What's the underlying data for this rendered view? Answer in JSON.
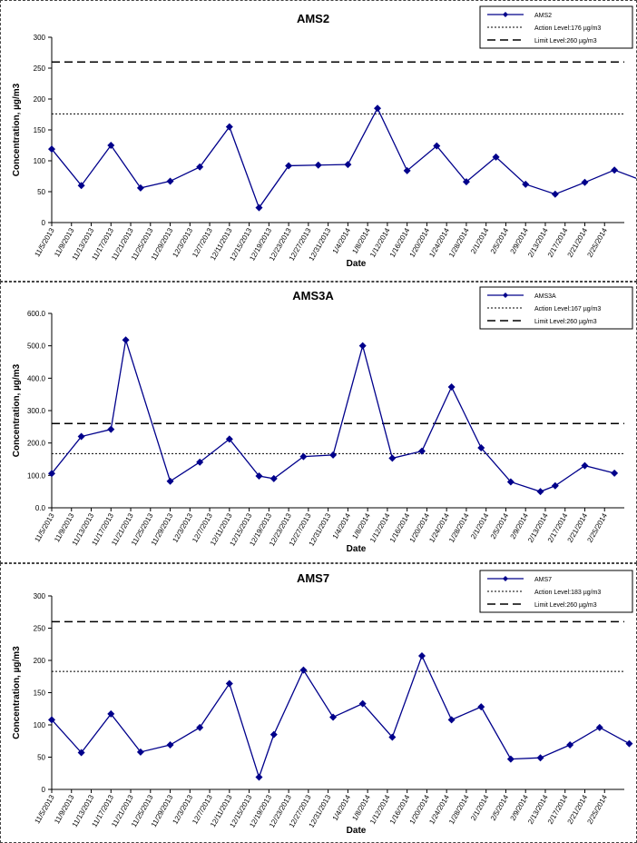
{
  "chart_data": [
    {
      "type": "line",
      "title": "AMS2",
      "xlabel": "Date",
      "ylabel": "Concentration, µg/m3",
      "ylim": [
        0,
        300
      ],
      "yticks": [
        "0",
        "50",
        "100",
        "150",
        "200",
        "250",
        "300"
      ],
      "categories": [
        "11/5/2013",
        "11/9/2013",
        "11/13/2013",
        "11/17/2013",
        "11/21/2013",
        "11/25/2013",
        "11/29/2013",
        "12/3/2013",
        "12/7/2013",
        "12/11/2013",
        "12/15/2013",
        "12/19/2013",
        "12/23/2013",
        "12/27/2013",
        "12/31/2013",
        "1/4/2014",
        "1/8/2014",
        "1/12/2014",
        "1/16/2014",
        "1/20/2014",
        "1/24/2014",
        "1/28/2014",
        "2/1/2014",
        "2/5/2014",
        "2/9/2014",
        "2/13/2014",
        "2/17/2014",
        "2/21/2014",
        "2/25/2014"
      ],
      "series": [
        {
          "name": "AMS2",
          "type": "line",
          "color": "#00008B",
          "points": [
            [
              "11/5/2013",
              119
            ],
            [
              "11/11/2013",
              60
            ],
            [
              "11/17/2013",
              125
            ],
            [
              "11/23/2013",
              56
            ],
            [
              "11/29/2013",
              67
            ],
            [
              "12/5/2013",
              90
            ],
            [
              "12/11/2013",
              155
            ],
            [
              "12/17/2013",
              24
            ],
            [
              "12/23/2013",
              92
            ],
            [
              "12/29/2013",
              93
            ],
            [
              "1/4/2014",
              94
            ],
            [
              "1/10/2014",
              185
            ],
            [
              "1/16/2014",
              84
            ],
            [
              "1/22/2014",
              124
            ],
            [
              "1/28/2014",
              66
            ],
            [
              "2/3/2014",
              106
            ],
            [
              "2/9/2014",
              62
            ],
            [
              "2/15/2014",
              46
            ],
            [
              "2/21/2014",
              65
            ],
            [
              "2/27/2014",
              85
            ],
            [
              "3/5/2014",
              67
            ]
          ]
        },
        {
          "name": "Action Level:176 µg/m3",
          "type": "hline",
          "value": 176,
          "style": "dotted"
        },
        {
          "name": "Limit Level:260 µg/m3",
          "type": "hline",
          "value": 260,
          "style": "dashed"
        }
      ],
      "legend": "top-right",
      "grid": false
    },
    {
      "type": "line",
      "title": "AMS3A",
      "xlabel": "Date",
      "ylabel": "Concentration, µg/m3",
      "ylim": [
        0,
        600
      ],
      "yticks": [
        "0.0",
        "100.0",
        "200.0",
        "300.0",
        "400.0",
        "500.0",
        "600.0"
      ],
      "categories": [
        "11/5/2013",
        "11/9/2013",
        "11/13/2013",
        "11/17/2013",
        "11/21/2013",
        "11/25/2013",
        "11/29/2013",
        "12/3/2013",
        "12/7/2013",
        "12/11/2013",
        "12/15/2013",
        "12/19/2013",
        "12/23/2013",
        "12/27/2013",
        "12/31/2013",
        "1/4/2014",
        "1/8/2014",
        "1/12/2014",
        "1/16/2014",
        "1/20/2014",
        "1/24/2014",
        "1/28/2014",
        "2/1/2014",
        "2/5/2014",
        "2/9/2014",
        "2/13/2014",
        "2/17/2014",
        "2/21/2014",
        "2/25/2014"
      ],
      "series": [
        {
          "name": "AMS3A",
          "type": "line",
          "color": "#00008B",
          "points": [
            [
              "11/5/2013",
              106
            ],
            [
              "11/11/2013",
              220
            ],
            [
              "11/17/2013",
              242
            ],
            [
              "11/20/2013",
              518
            ],
            [
              "11/29/2013",
              82
            ],
            [
              "12/5/2013",
              141
            ],
            [
              "12/11/2013",
              212
            ],
            [
              "12/17/2013",
              98
            ],
            [
              "12/20/2013",
              90
            ],
            [
              "12/26/2013",
              158
            ],
            [
              "1/1/2014",
              163
            ],
            [
              "1/7/2014",
              500
            ],
            [
              "1/13/2014",
              153
            ],
            [
              "1/19/2014",
              175
            ],
            [
              "1/25/2014",
              373
            ],
            [
              "1/31/2014",
              185
            ],
            [
              "2/6/2014",
              80
            ],
            [
              "2/12/2014",
              50
            ],
            [
              "2/15/2014",
              68
            ],
            [
              "2/21/2014",
              130
            ],
            [
              "2/27/2014",
              107
            ]
          ]
        },
        {
          "name": "Action Level:167 µg/m3",
          "type": "hline",
          "value": 167,
          "style": "dotted"
        },
        {
          "name": "Limit Level:260 µg/m3",
          "type": "hline",
          "value": 260,
          "style": "dashed"
        }
      ],
      "legend": "top-right",
      "grid": false
    },
    {
      "type": "line",
      "title": "AMS7",
      "xlabel": "Date",
      "ylabel": "Concentration, µg/m3",
      "ylim": [
        0,
        300
      ],
      "yticks": [
        "0",
        "50",
        "100",
        "150",
        "200",
        "250",
        "300"
      ],
      "categories": [
        "11/5/2013",
        "11/9/2013",
        "11/13/2013",
        "11/17/2013",
        "11/21/2013",
        "11/25/2013",
        "11/29/2013",
        "12/3/2013",
        "12/7/2013",
        "12/11/2013",
        "12/15/2013",
        "12/19/2013",
        "12/23/2013",
        "12/27/2013",
        "12/31/2013",
        "1/4/2014",
        "1/8/2014",
        "1/12/2014",
        "1/16/2014",
        "1/20/2014",
        "1/24/2014",
        "1/28/2014",
        "2/1/2014",
        "2/5/2014",
        "2/9/2014",
        "2/13/2014",
        "2/17/2014",
        "2/21/2014",
        "2/25/2014"
      ],
      "series": [
        {
          "name": "AMS7",
          "type": "line",
          "color": "#00008B",
          "points": [
            [
              "11/5/2013",
              108
            ],
            [
              "11/11/2013",
              57
            ],
            [
              "11/17/2013",
              117
            ],
            [
              "11/23/2013",
              58
            ],
            [
              "11/29/2013",
              69
            ],
            [
              "12/5/2013",
              96
            ],
            [
              "12/11/2013",
              164
            ],
            [
              "12/17/2013",
              19
            ],
            [
              "12/20/2013",
              85
            ],
            [
              "12/26/2013",
              185
            ],
            [
              "1/1/2014",
              112
            ],
            [
              "1/7/2014",
              133
            ],
            [
              "1/13/2014",
              81
            ],
            [
              "1/19/2014",
              207
            ],
            [
              "1/25/2014",
              108
            ],
            [
              "1/31/2014",
              128
            ],
            [
              "2/6/2014",
              47
            ],
            [
              "2/12/2014",
              49
            ],
            [
              "2/18/2014",
              69
            ],
            [
              "2/24/2014",
              96
            ],
            [
              "3/2/2014",
              71
            ]
          ]
        },
        {
          "name": "Action Level:183 µg/m3",
          "type": "hline",
          "value": 183,
          "style": "dotted"
        },
        {
          "name": "Limit Level:260 µg/m3",
          "type": "hline",
          "value": 260,
          "style": "dashed"
        }
      ],
      "legend": "top-right",
      "grid": false
    }
  ]
}
